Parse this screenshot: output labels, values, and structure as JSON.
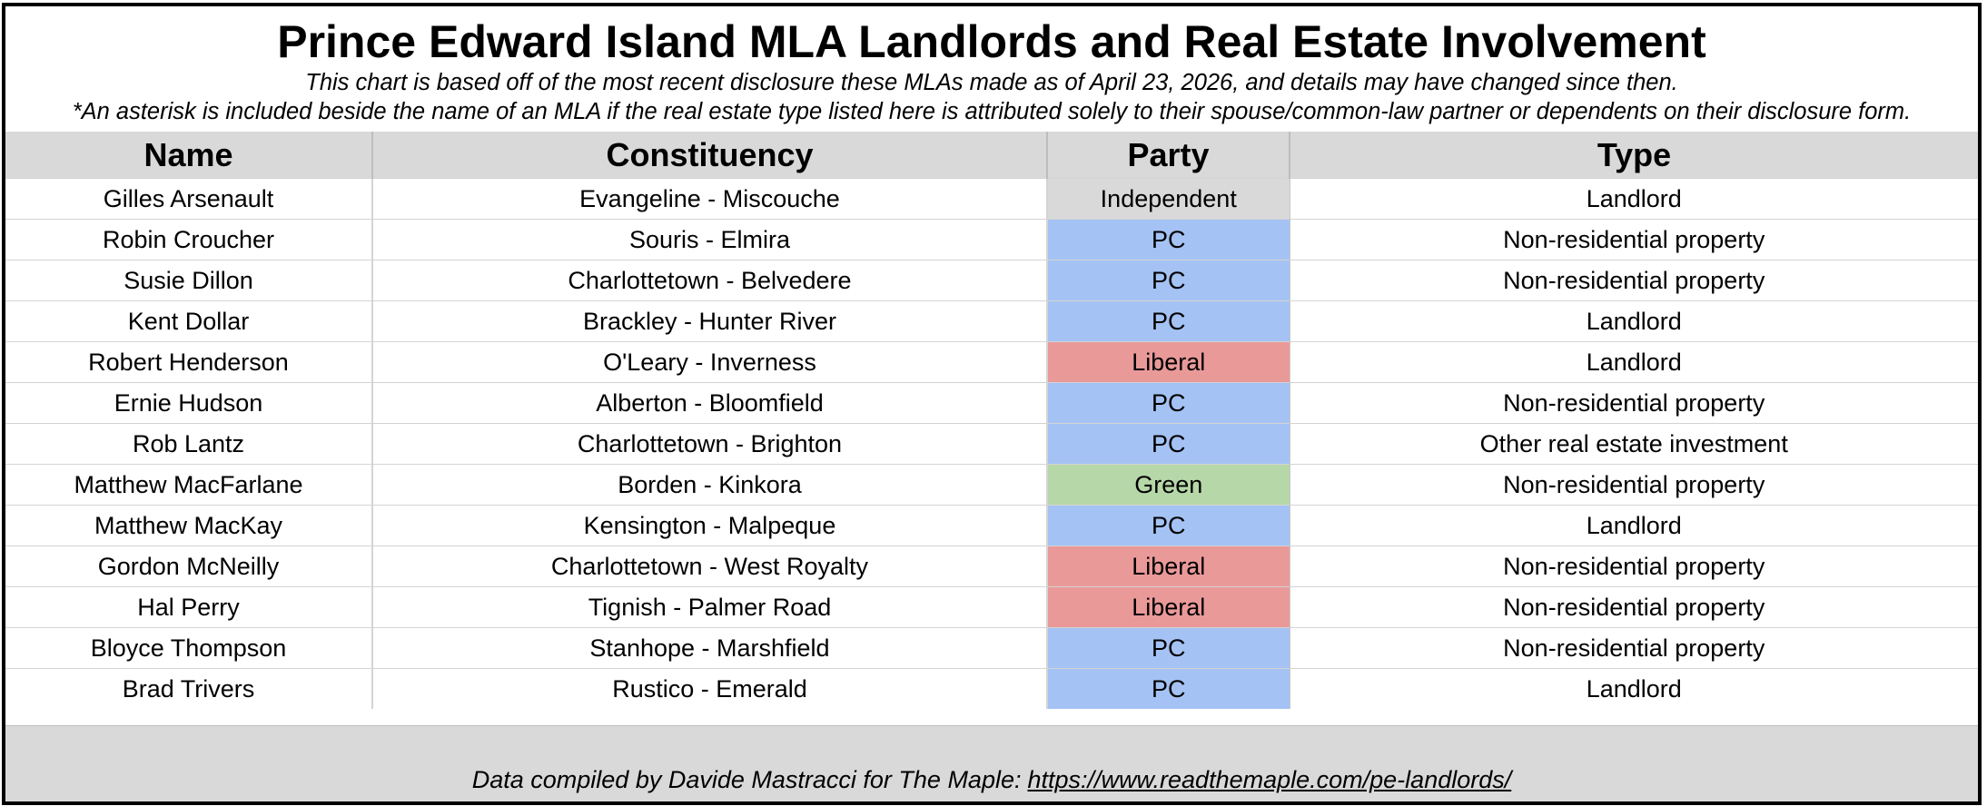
{
  "chart_data": {
    "type": "table",
    "title": "Prince Edward Island MLA Landlords and Real Estate Involvement",
    "subtitle": [
      "This chart is based off of the most recent disclosure these MLAs made as of April 23, 2026, and details may have changed since then.",
      "*An asterisk is included beside the name of an MLA if the real estate type listed here is attributed solely to their spouse/common-law partner or dependents on their disclosure form."
    ],
    "columns": [
      "Name",
      "Constituency",
      "Party",
      "Type"
    ],
    "rows": [
      [
        "Gilles Arsenault",
        "Evangeline - Miscouche",
        "Independent",
        "Landlord"
      ],
      [
        "Robin Croucher",
        "Souris - Elmira",
        "PC",
        "Non-residential property"
      ],
      [
        "Susie Dillon",
        "Charlottetown - Belvedere",
        "PC",
        "Non-residential property"
      ],
      [
        "Kent Dollar",
        "Brackley - Hunter River",
        "PC",
        "Landlord"
      ],
      [
        "Robert Henderson",
        "O'Leary - Inverness",
        "Liberal",
        "Landlord"
      ],
      [
        "Ernie Hudson",
        "Alberton - Bloomfield",
        "PC",
        "Non-residential property"
      ],
      [
        "Rob Lantz",
        "Charlottetown - Brighton",
        "PC",
        "Other real estate investment"
      ],
      [
        "Matthew MacFarlane",
        "Borden - Kinkora",
        "Green",
        "Non-residential property"
      ],
      [
        "Matthew MacKay",
        "Kensington - Malpeque",
        "PC",
        "Landlord"
      ],
      [
        "Gordon McNeilly",
        "Charlottetown - West Royalty",
        "Liberal",
        "Non-residential property"
      ],
      [
        "Hal Perry",
        "Tignish - Palmer Road",
        "Liberal",
        "Non-residential property"
      ],
      [
        "Bloyce Thompson",
        "Stanhope - Marshfield",
        "PC",
        "Non-residential property"
      ],
      [
        "Brad Trivers",
        "Rustico - Emerald",
        "PC",
        "Landlord"
      ]
    ],
    "party_colors": {
      "Independent": "#d9d9d9",
      "PC": "#a4c2f4",
      "Liberal": "#ea9999",
      "Green": "#b6d7a8"
    }
  },
  "footer": {
    "text": "Data compiled by Davide Mastracci for The Maple:",
    "link": "https://www.readthemaple.com/pe-landlords/"
  }
}
